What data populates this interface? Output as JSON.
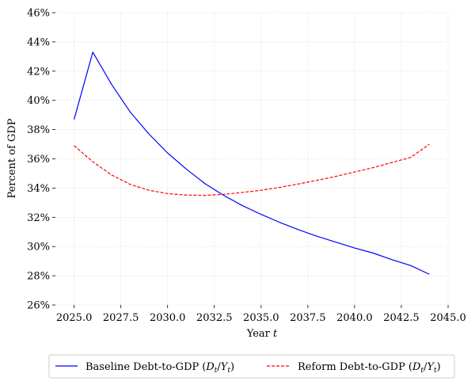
{
  "chart_data": {
    "type": "line",
    "xlabel": "Year ",
    "xlabel_var": "t",
    "ylabel": "Percent of GDP",
    "xlim": [
      2024.0,
      2045.0
    ],
    "ylim": [
      26,
      46
    ],
    "xticks": [
      2025.0,
      2027.5,
      2030.0,
      2032.5,
      2035.0,
      2037.5,
      2040.0,
      2042.5,
      2045.0
    ],
    "xtick_labels": [
      "2025.0",
      "2027.5",
      "2030.0",
      "2032.5",
      "2035.0",
      "2037.5",
      "2040.0",
      "2042.5",
      "2045.0"
    ],
    "yticks": [
      26,
      28,
      30,
      32,
      34,
      36,
      38,
      40,
      42,
      44,
      46
    ],
    "ytick_labels": [
      "26%",
      "28%",
      "30%",
      "32%",
      "34%",
      "36%",
      "38%",
      "40%",
      "42%",
      "44%",
      "46%"
    ],
    "grid": true,
    "legend_position": "bottom-center, below plot",
    "x": [
      2025,
      2026,
      2027,
      2028,
      2029,
      2030,
      2031,
      2032,
      2033,
      2034,
      2035,
      2036,
      2037,
      2038,
      2039,
      2040,
      2041,
      2042,
      2043,
      2044
    ],
    "series": [
      {
        "name": "Baseline Debt-to-GDP",
        "name_math": "(D_t/Y_t)",
        "color": "#0000ff",
        "style": "solid",
        "values": [
          38.7,
          43.3,
          41.1,
          39.2,
          37.7,
          36.4,
          35.3,
          34.3,
          33.5,
          32.8,
          32.2,
          31.65,
          31.15,
          30.7,
          30.3,
          29.9,
          29.55,
          29.1,
          28.7,
          28.1
        ]
      },
      {
        "name": "Reform Debt-to-GDP",
        "name_math": "(D_t/Y_t)",
        "color": "#ff0000",
        "style": "dashed",
        "values": [
          36.9,
          35.8,
          34.9,
          34.25,
          33.85,
          33.62,
          33.52,
          33.5,
          33.57,
          33.7,
          33.85,
          34.05,
          34.28,
          34.53,
          34.8,
          35.1,
          35.4,
          35.75,
          36.1,
          37.0
        ]
      }
    ]
  }
}
